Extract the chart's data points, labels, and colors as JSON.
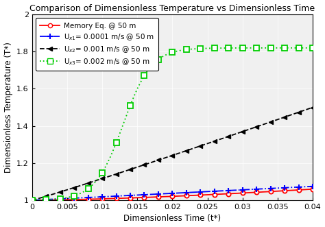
{
  "title": "Comparison of Dimensionless Temperature vs Dimensionless Time",
  "xlabel": "Dimensionless Time (t*)",
  "ylabel": "Dimensionless Temperature (T*)",
  "xlim": [
    0,
    0.04
  ],
  "ylim": [
    1.0,
    2.0
  ],
  "xticks": [
    0,
    0.005,
    0.01,
    0.015,
    0.02,
    0.025,
    0.03,
    0.035,
    0.04
  ],
  "yticks": [
    1.0,
    1.2,
    1.4,
    1.6,
    1.8,
    2.0
  ],
  "legend_labels": [
    "Memory Eq. @ 50 m",
    "U$_{x1}$= 0.0001 m/s @ 50 m",
    "U$_{x2}$= 0.001 m/s @ 50 m",
    "U$_{x3}$= 0.002 m/s @ 50 m"
  ],
  "colors": [
    "#ff0000",
    "#0000ff",
    "#000000",
    "#00cc00"
  ],
  "background_color": "#ffffff",
  "title_fontsize": 9,
  "label_fontsize": 8.5,
  "tick_fontsize": 8,
  "legend_fontsize": 7.5,
  "n_markers": 21
}
